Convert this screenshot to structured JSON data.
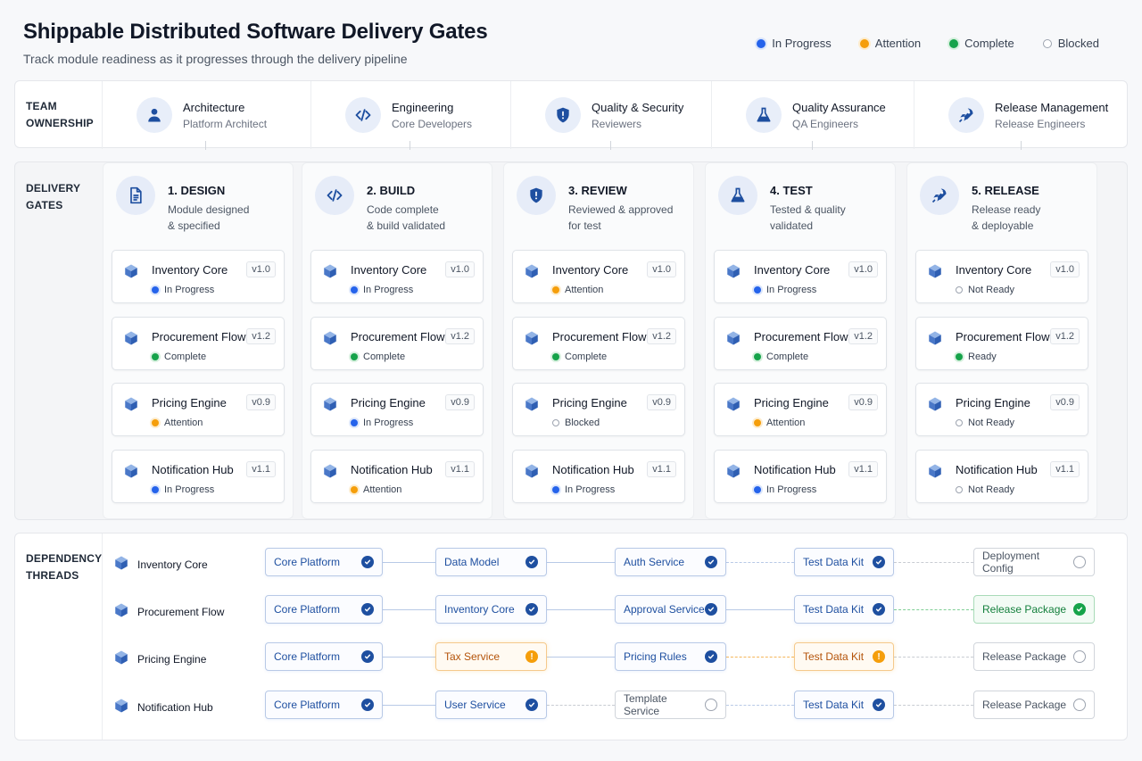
{
  "header": {
    "title": "Shippable Distributed Software Delivery Gates",
    "subtitle": "Track module readiness as it progresses through the delivery pipeline"
  },
  "legend": [
    {
      "label": "In Progress",
      "status": "inprog"
    },
    {
      "label": "Attention",
      "status": "attn"
    },
    {
      "label": "Complete",
      "status": "done"
    },
    {
      "label": "Blocked",
      "status": "blocked"
    }
  ],
  "colors": {
    "accent": "#1e4fa0",
    "in_progress": "#2563eb",
    "attention": "#f59e0b",
    "complete": "#16a34a",
    "blocked": "#9ca3af"
  },
  "team": {
    "label_line1": "TEAM",
    "label_line2": "OWNERSHIP",
    "teams": [
      {
        "name": "Architecture",
        "role": "Platform Architect",
        "icon": "person-icon"
      },
      {
        "name": "Engineering",
        "role": "Core Developers",
        "icon": "code-icon"
      },
      {
        "name": "Quality & Security",
        "role": "Reviewers",
        "icon": "shield-icon"
      },
      {
        "name": "Quality Assurance",
        "role": "QA Engineers",
        "icon": "flask-icon"
      },
      {
        "name": "Release Management",
        "role": "Release Engineers",
        "icon": "rocket-icon"
      }
    ]
  },
  "gates": {
    "label_line1": "DELIVERY",
    "label_line2": "GATES",
    "columns": [
      {
        "title": "1. DESIGN",
        "desc1": "Module designed",
        "desc2": "& specified",
        "icon": "document-icon",
        "modules": [
          {
            "name": "Inventory Core",
            "version": "v1.0",
            "status": "In Progress",
            "state": "inprog"
          },
          {
            "name": "Procurement Flow",
            "version": "v1.2",
            "status": "Complete",
            "state": "done"
          },
          {
            "name": "Pricing Engine",
            "version": "v0.9",
            "status": "Attention",
            "state": "attn"
          },
          {
            "name": "Notification Hub",
            "version": "v1.1",
            "status": "In Progress",
            "state": "inprog"
          }
        ]
      },
      {
        "title": "2. BUILD",
        "desc1": "Code complete",
        "desc2": "& build validated",
        "icon": "code-icon",
        "modules": [
          {
            "name": "Inventory Core",
            "version": "v1.0",
            "status": "In Progress",
            "state": "inprog"
          },
          {
            "name": "Procurement Flow",
            "version": "v1.2",
            "status": "Complete",
            "state": "done"
          },
          {
            "name": "Pricing Engine",
            "version": "v0.9",
            "status": "In Progress",
            "state": "inprog"
          },
          {
            "name": "Notification Hub",
            "version": "v1.1",
            "status": "Attention",
            "state": "attn"
          }
        ]
      },
      {
        "title": "3. REVIEW",
        "desc1": "Reviewed & approved",
        "desc2": "for test",
        "icon": "shield-icon",
        "modules": [
          {
            "name": "Inventory Core",
            "version": "v1.0",
            "status": "Attention",
            "state": "attn"
          },
          {
            "name": "Procurement Flow",
            "version": "v1.2",
            "status": "Complete",
            "state": "done"
          },
          {
            "name": "Pricing Engine",
            "version": "v0.9",
            "status": "Blocked",
            "state": "blocked"
          },
          {
            "name": "Notification Hub",
            "version": "v1.1",
            "status": "In Progress",
            "state": "inprog"
          }
        ]
      },
      {
        "title": "4. TEST",
        "desc1": "Tested & quality",
        "desc2": "validated",
        "icon": "flask-icon",
        "modules": [
          {
            "name": "Inventory Core",
            "version": "v1.0",
            "status": "In Progress",
            "state": "inprog"
          },
          {
            "name": "Procurement Flow",
            "version": "v1.2",
            "status": "Complete",
            "state": "done"
          },
          {
            "name": "Pricing Engine",
            "version": "v0.9",
            "status": "Attention",
            "state": "attn"
          },
          {
            "name": "Notification Hub",
            "version": "v1.1",
            "status": "In Progress",
            "state": "inprog"
          }
        ]
      },
      {
        "title": "5. RELEASE",
        "desc1": "Release ready",
        "desc2": "& deployable",
        "icon": "rocket-icon",
        "modules": [
          {
            "name": "Inventory Core",
            "version": "v1.0",
            "status": "Not Ready",
            "state": "blocked"
          },
          {
            "name": "Procurement Flow",
            "version": "v1.2",
            "status": "Ready",
            "state": "done"
          },
          {
            "name": "Pricing Engine",
            "version": "v0.9",
            "status": "Not Ready",
            "state": "blocked"
          },
          {
            "name": "Notification Hub",
            "version": "v1.1",
            "status": "Not Ready",
            "state": "blocked"
          }
        ]
      }
    ]
  },
  "deps": {
    "label_line1": "DEPENDENCY",
    "label_line2": "THREADS",
    "rows": [
      {
        "module": "Inventory Core",
        "nodes": [
          {
            "label": "Core Platform",
            "state": "done"
          },
          {
            "label": "Data Model",
            "state": "done"
          },
          {
            "label": "Auth Service",
            "state": "done"
          },
          {
            "label": "Test Data Kit",
            "state": "done"
          },
          {
            "label": "Deployment Config",
            "state": "pend"
          }
        ],
        "links": [
          "solid",
          "solid",
          "dash",
          "dash-gray"
        ]
      },
      {
        "module": "Procurement Flow",
        "nodes": [
          {
            "label": "Core Platform",
            "state": "done"
          },
          {
            "label": "Inventory Core",
            "state": "done"
          },
          {
            "label": "Approval Service",
            "state": "done"
          },
          {
            "label": "Test Data Kit",
            "state": "done"
          },
          {
            "label": "Release Package",
            "state": "ready"
          }
        ],
        "links": [
          "solid",
          "solid",
          "solid",
          "dash-green"
        ]
      },
      {
        "module": "Pricing Engine",
        "nodes": [
          {
            "label": "Core Platform",
            "state": "done"
          },
          {
            "label": "Tax Service",
            "state": "attn"
          },
          {
            "label": "Pricing Rules",
            "state": "done"
          },
          {
            "label": "Test Data Kit",
            "state": "attn"
          },
          {
            "label": "Release Package",
            "state": "pend"
          }
        ],
        "links": [
          "solid",
          "solid",
          "dash-orange",
          "dash-gray"
        ]
      },
      {
        "module": "Notification Hub",
        "nodes": [
          {
            "label": "Core Platform",
            "state": "done"
          },
          {
            "label": "User Service",
            "state": "done"
          },
          {
            "label": "Template Service",
            "state": "pend"
          },
          {
            "label": "Test Data Kit",
            "state": "done"
          },
          {
            "label": "Release Package",
            "state": "pend"
          }
        ],
        "links": [
          "solid",
          "dash-gray",
          "dash",
          "dash-gray"
        ]
      }
    ]
  }
}
